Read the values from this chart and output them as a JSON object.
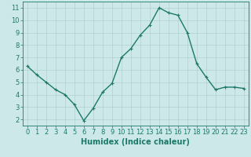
{
  "x": [
    0,
    1,
    2,
    3,
    4,
    5,
    6,
    7,
    8,
    9,
    10,
    11,
    12,
    13,
    14,
    15,
    16,
    17,
    18,
    19,
    20,
    21,
    22,
    23
  ],
  "y": [
    6.3,
    5.6,
    5.0,
    4.4,
    4.0,
    3.2,
    1.9,
    2.9,
    4.2,
    4.9,
    7.0,
    7.7,
    8.8,
    9.6,
    11.0,
    10.6,
    10.4,
    9.0,
    6.5,
    5.4,
    4.4,
    4.6,
    4.6,
    4.5
  ],
  "line_color": "#1a7a6a",
  "marker_color": "#1a7a6a",
  "bg_color": "#cce8e8",
  "grid_color": "#b0d0d0",
  "xlabel": "Humidex (Indice chaleur)",
  "xlabel_fontsize": 7,
  "xlim": [
    -0.5,
    23.5
  ],
  "ylim": [
    1.5,
    11.5
  ],
  "yticks": [
    2,
    3,
    4,
    5,
    6,
    7,
    8,
    9,
    10,
    11
  ],
  "xticks": [
    0,
    1,
    2,
    3,
    4,
    5,
    6,
    7,
    8,
    9,
    10,
    11,
    12,
    13,
    14,
    15,
    16,
    17,
    18,
    19,
    20,
    21,
    22,
    23
  ],
  "tick_fontsize": 6,
  "line_width": 1.0,
  "marker_size": 2.5
}
